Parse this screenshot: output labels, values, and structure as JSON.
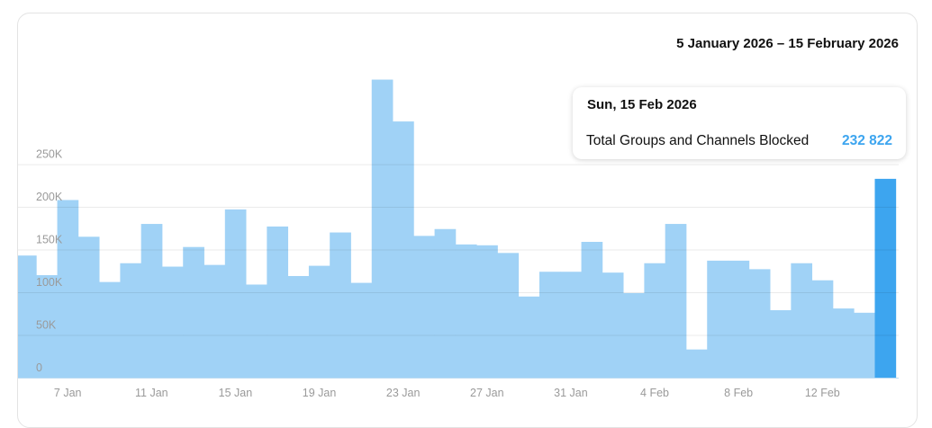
{
  "header": {
    "date_range": "5 January 2026 – 15 February 2026"
  },
  "tooltip": {
    "date": "Sun, 15 Feb 2026",
    "label": "Total Groups and Channels Blocked",
    "value": "232 822"
  },
  "colors": {
    "bar": "#a0d2f6",
    "bar_highlight": "#3da5ef",
    "grid": "#ebebeb",
    "tick_label": "#9a9a9a"
  },
  "chart_data": {
    "type": "bar",
    "title": "5 January 2026 – 15 February 2026",
    "xlabel": "",
    "ylabel": "",
    "ylim": [
      0,
      358000
    ],
    "grid": true,
    "yticks": [
      0,
      50000,
      100000,
      150000,
      200000,
      250000
    ],
    "ytick_labels": [
      "0",
      "50K",
      "100K",
      "150K",
      "200K",
      "250K"
    ],
    "xtick_labels": [
      {
        "category": "7 Jan",
        "label": "7 Jan"
      },
      {
        "category": "11 Jan",
        "label": "11 Jan"
      },
      {
        "category": "15 Jan",
        "label": "15 Jan"
      },
      {
        "category": "19 Jan",
        "label": "19 Jan"
      },
      {
        "category": "23 Jan",
        "label": "23 Jan"
      },
      {
        "category": "27 Jan",
        "label": "27 Jan"
      },
      {
        "category": "31 Jan",
        "label": "31 Jan"
      },
      {
        "category": "4 Feb",
        "label": "4 Feb"
      },
      {
        "category": "8 Feb",
        "label": "8 Feb"
      },
      {
        "category": "12 Feb",
        "label": "12 Feb"
      }
    ],
    "categories": [
      "5 Jan",
      "6 Jan",
      "7 Jan",
      "8 Jan",
      "9 Jan",
      "10 Jan",
      "11 Jan",
      "12 Jan",
      "13 Jan",
      "14 Jan",
      "15 Jan",
      "16 Jan",
      "17 Jan",
      "18 Jan",
      "19 Jan",
      "20 Jan",
      "21 Jan",
      "22 Jan",
      "23 Jan",
      "24 Jan",
      "25 Jan",
      "26 Jan",
      "27 Jan",
      "28 Jan",
      "29 Jan",
      "30 Jan",
      "31 Jan",
      "1 Feb",
      "2 Feb",
      "3 Feb",
      "4 Feb",
      "5 Feb",
      "6 Feb",
      "7 Feb",
      "8 Feb",
      "9 Feb",
      "10 Feb",
      "11 Feb",
      "12 Feb",
      "13 Feb",
      "14 Feb",
      "15 Feb"
    ],
    "values": [
      143000,
      120000,
      208000,
      165000,
      112000,
      134000,
      180000,
      130000,
      153000,
      132000,
      197000,
      109000,
      177000,
      119000,
      131000,
      170000,
      111000,
      349000,
      300000,
      166000,
      174000,
      156000,
      155000,
      146000,
      95000,
      124000,
      124000,
      159000,
      123000,
      99000,
      134000,
      180000,
      33000,
      137000,
      137000,
      127000,
      79000,
      134000,
      114000,
      81000,
      76000,
      232822
    ],
    "highlighted": "15 Feb"
  }
}
